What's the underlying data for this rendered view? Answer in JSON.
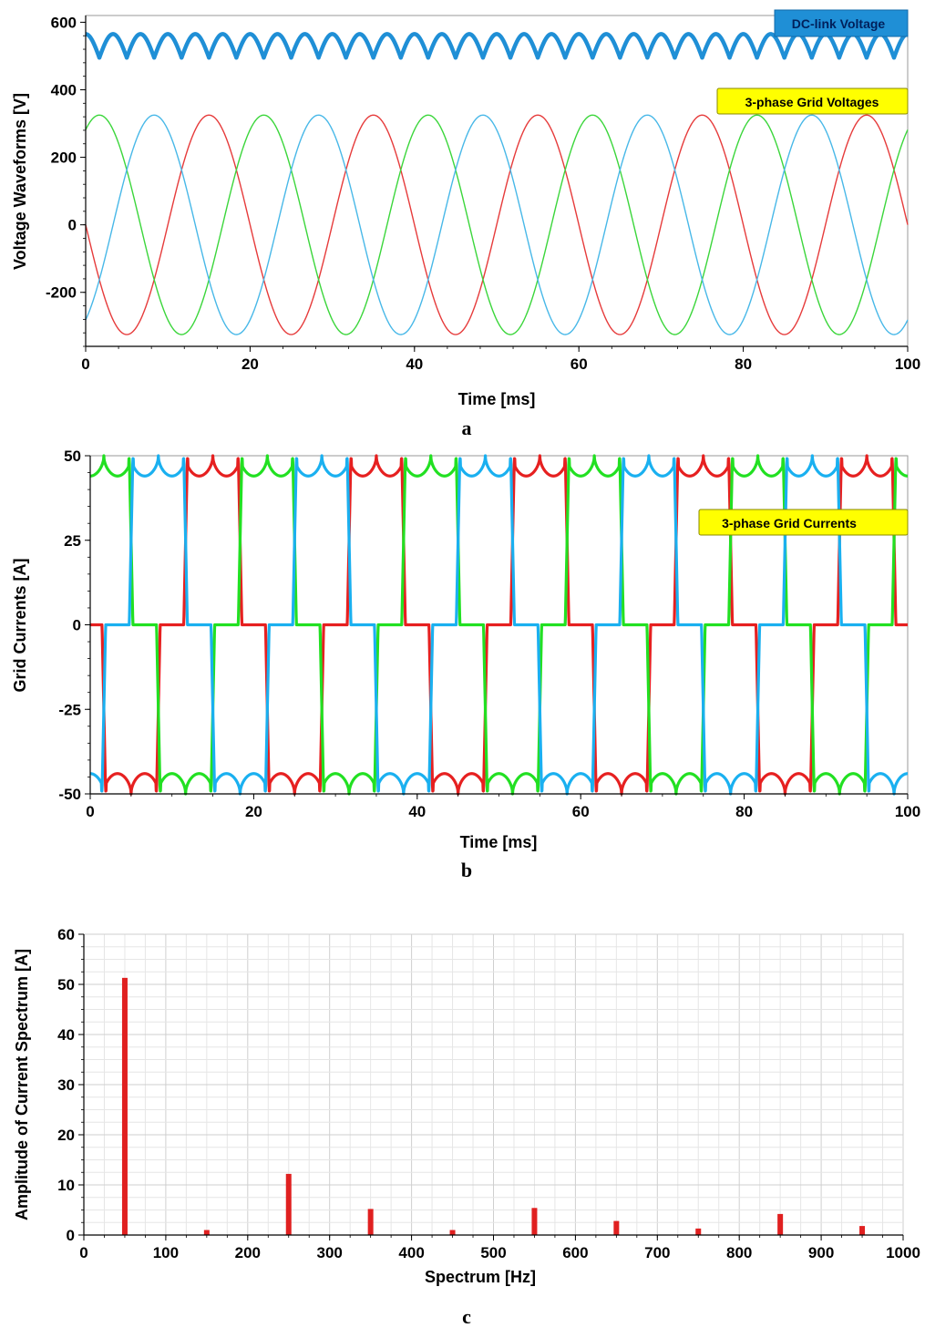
{
  "chart_data": [
    {
      "type": "line",
      "panel_label": "a",
      "xlabel": "Time [ms]",
      "ylabel": "Voltage Waveforms [V]",
      "xlim": [
        0,
        100
      ],
      "ylim": [
        -360,
        620
      ],
      "xticks": [
        0,
        20,
        40,
        60,
        80,
        100
      ],
      "yticks": [
        -200,
        0,
        200,
        400,
        600
      ],
      "grid": false,
      "legend_boxes": [
        {
          "text": "DC-link Voltage",
          "background": "#1f8fd6",
          "text_color": "#00205b",
          "placement": "top-right"
        },
        {
          "text": "3-phase Grid Voltages",
          "background": "#ffff00",
          "text_color": "#000000",
          "placement": "upper-right"
        }
      ],
      "dc_link": {
        "mean": 530,
        "ripple_peak_to_peak": 70,
        "ripple_frequency_hz": 300,
        "color": "#1f8fd6"
      },
      "grid_voltages": {
        "frequency_hz": 50,
        "amplitude": 325,
        "series": [
          {
            "color": "#e63b3b",
            "phase_deg": 180
          },
          {
            "color": "#3bd63b",
            "phase_deg": 60
          },
          {
            "color": "#48b8e8",
            "phase_deg": -60
          }
        ]
      }
    },
    {
      "type": "line",
      "panel_label": "b",
      "xlabel": "Time [ms]",
      "ylabel": "Grid Currents [A]",
      "xlim": [
        0,
        100
      ],
      "ylim": [
        -50,
        50
      ],
      "xticks": [
        0,
        20,
        40,
        60,
        80,
        100
      ],
      "yticks": [
        -50,
        -25,
        0,
        25,
        50
      ],
      "grid": false,
      "legend_boxes": [
        {
          "text": "3-phase Grid Currents",
          "background": "#ffff00",
          "text_color": "#000000",
          "placement": "upper-right"
        }
      ],
      "grid_currents": {
        "frequency_hz": 50,
        "amplitude": 50,
        "notch_depth": 6,
        "series": [
          {
            "color": "#e62020",
            "phase_deg": 180
          },
          {
            "color": "#22e022",
            "phase_deg": 60
          },
          {
            "color": "#1ab0f0",
            "phase_deg": -60
          }
        ]
      }
    },
    {
      "type": "bar",
      "panel_label": "c",
      "xlabel": "Spectrum [Hz]",
      "ylabel": "Amplitude of Current Spectrum [A]",
      "xlim": [
        0,
        1000
      ],
      "ylim": [
        0,
        60
      ],
      "xticks": [
        0,
        100,
        200,
        300,
        400,
        500,
        600,
        700,
        800,
        900,
        1000
      ],
      "yticks": [
        0,
        10,
        20,
        30,
        40,
        50,
        60
      ],
      "grid": true,
      "bar_color": "#e02020",
      "x": [
        50,
        150,
        250,
        350,
        450,
        550,
        650,
        750,
        850,
        950
      ],
      "values": [
        51.3,
        1.0,
        12.2,
        5.2,
        1.0,
        5.4,
        2.8,
        1.3,
        4.2,
        1.8
      ]
    }
  ]
}
